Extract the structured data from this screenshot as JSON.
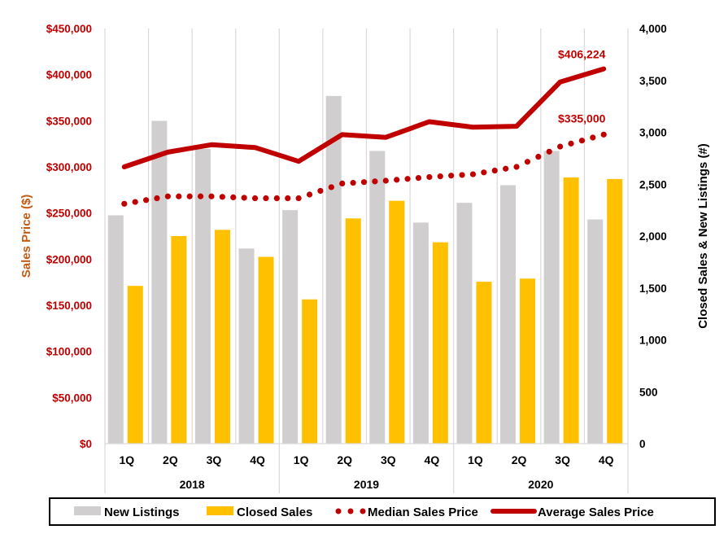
{
  "chart_data": {
    "type": "bar+line",
    "categories": [
      "1Q",
      "2Q",
      "3Q",
      "4Q",
      "1Q",
      "2Q",
      "3Q",
      "4Q",
      "1Q",
      "2Q",
      "3Q",
      "4Q"
    ],
    "groups": [
      {
        "label": "2018",
        "span": 4
      },
      {
        "label": "2019",
        "span": 4
      },
      {
        "label": "2020",
        "span": 4
      }
    ],
    "left_axis": {
      "label": "Sales Price ($)",
      "range": [
        0,
        450000
      ],
      "ticks": [
        "$0",
        "$50,000",
        "$100,000",
        "$150,000",
        "$200,000",
        "$250,000",
        "$300,000",
        "$350,000",
        "$400,000",
        "$450,000"
      ],
      "color": "#c00000",
      "title_color": "#c55a11"
    },
    "right_axis": {
      "label": "Closed Sales & New Listings (#)",
      "range": [
        0,
        4000
      ],
      "ticks": [
        "0",
        "500",
        "1,000",
        "1,500",
        "2,000",
        "2,500",
        "3,000",
        "3,500",
        "4,000"
      ]
    },
    "series": [
      {
        "name": "New Listings",
        "type": "bar",
        "axis": "right",
        "color": "#d0cece",
        "values": [
          2200,
          3110,
          2840,
          1880,
          2250,
          3350,
          2820,
          2130,
          2320,
          2490,
          2820,
          2160
        ]
      },
      {
        "name": "Closed Sales",
        "type": "bar",
        "axis": "right",
        "color": "#ffc000",
        "values": [
          1520,
          2000,
          2060,
          1800,
          1390,
          2170,
          2340,
          1940,
          1560,
          1590,
          2565,
          2550
        ]
      },
      {
        "name": "Median Sales Price",
        "type": "line-dotted",
        "axis": "left",
        "color": "#c00000",
        "values": [
          260000,
          268000,
          268000,
          266000,
          266000,
          282000,
          285000,
          289000,
          292000,
          300000,
          322000,
          335000
        ],
        "end_label": "$335,000"
      },
      {
        "name": "Average Sales Price",
        "type": "line",
        "axis": "left",
        "color": "#c00000",
        "values": [
          300000,
          316000,
          324000,
          321000,
          306000,
          335000,
          332000,
          349000,
          343000,
          344000,
          392000,
          406224
        ],
        "end_label": "$406,224"
      }
    ],
    "grid": "vertical category separators",
    "legend_position": "bottom"
  }
}
